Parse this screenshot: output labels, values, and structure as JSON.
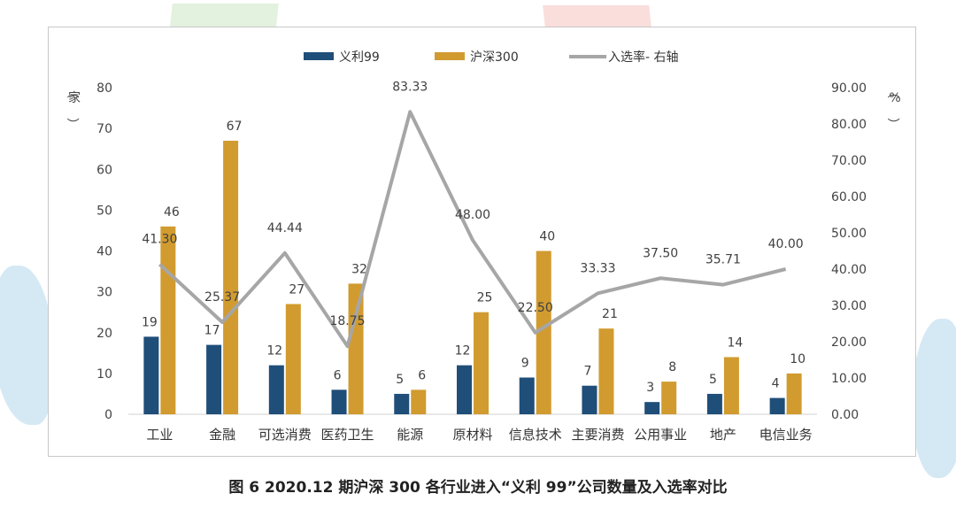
{
  "caption": "图 6   2020.12 期沪深 300 各行业进入“义利 99”公司数量及入选率对比",
  "chart_data": {
    "type": "bar",
    "categories": [
      "工业",
      "金融",
      "可选消费",
      "医药卫生",
      "能源",
      "原材料",
      "信息技术",
      "主要消费",
      "公用事业",
      "地产",
      "电信业务"
    ],
    "series": [
      {
        "name": "义利99",
        "type": "bar",
        "axis": "left",
        "color": "#1f4e79",
        "values": [
          19,
          17,
          12,
          6,
          5,
          12,
          9,
          7,
          3,
          5,
          4
        ]
      },
      {
        "name": "沪深300",
        "type": "bar",
        "axis": "left",
        "color": "#d19b2f",
        "values": [
          46,
          67,
          27,
          32,
          6,
          25,
          40,
          21,
          8,
          14,
          10
        ]
      },
      {
        "name": "入选率- 右轴",
        "type": "line",
        "axis": "right",
        "color": "#a6a6a6",
        "values": [
          41.3,
          25.37,
          44.44,
          18.75,
          83.33,
          48.0,
          22.5,
          33.33,
          37.5,
          35.71,
          40.0
        ]
      }
    ],
    "ylabel_left": "（家）",
    "ylabel_right": "（%）",
    "ylim_left": [
      0,
      80
    ],
    "ylim_right": [
      0,
      90
    ],
    "yticks_left": [
      "0",
      "10",
      "20",
      "30",
      "40",
      "50",
      "60",
      "70",
      "80"
    ],
    "yticks_right": [
      "0.00",
      "10.00",
      "20.00",
      "30.00",
      "40.00",
      "50.00",
      "60.00",
      "70.00",
      "80.00",
      "90.00"
    ],
    "line_labels": [
      "41.30",
      "25.37",
      "44.44",
      "18.75",
      "83.33",
      "48.00",
      "22.50",
      "33.33",
      "37.50",
      "35.71",
      "40.00"
    ],
    "legend_position": "top-center",
    "grid": false
  }
}
